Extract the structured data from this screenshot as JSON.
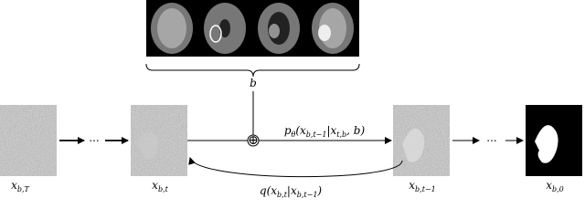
{
  "context_label": "b",
  "nodes": [
    {
      "label": [
        {
          "text": "x"
        },
        {
          "sub": "b,T"
        }
      ]
    },
    {
      "label": [
        {
          "text": "x"
        },
        {
          "sub": "b,t"
        }
      ]
    },
    {
      "label": [
        {
          "text": "x"
        },
        {
          "sub": "b,t−1"
        }
      ]
    },
    {
      "label": [
        {
          "text": "x"
        },
        {
          "sub": "b,0"
        }
      ]
    }
  ],
  "ellipses": [
    "...",
    "..."
  ],
  "combine_symbol": "⊕",
  "reverse_label": [
    {
      "text": "p"
    },
    {
      "sub": "θ"
    },
    {
      "text": "(x"
    },
    {
      "sub": "b,t−1"
    },
    {
      "text": "|x"
    },
    {
      "sub": "t,b"
    },
    {
      "text": ", b)"
    }
  ],
  "forward_label": [
    {
      "text": "q(x"
    },
    {
      "sub": "b,t"
    },
    {
      "text": "|x"
    },
    {
      "sub": "b,t−1"
    },
    {
      "text": ")"
    }
  ]
}
